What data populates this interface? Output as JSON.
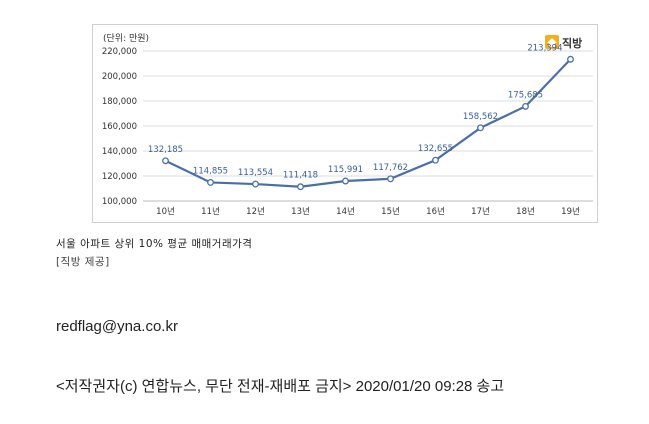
{
  "chart_data": {
    "type": "line",
    "unit_label": "(단위: 만원)",
    "title": "",
    "xlabel": "",
    "ylabel": "",
    "categories": [
      "10년",
      "11년",
      "12년",
      "13년",
      "14년",
      "15년",
      "16년",
      "17년",
      "18년",
      "19년"
    ],
    "series": [
      {
        "values": [
          132185,
          114855,
          113554,
          111418,
          115991,
          117762,
          132655,
          158562,
          175685,
          213394
        ],
        "labels": [
          "132,185",
          "114,855",
          "113,554",
          "111,418",
          "115,991",
          "117,762",
          "132,655",
          "158,562",
          "175,685",
          "213,394"
        ]
      }
    ],
    "ylim": [
      100000,
      220000
    ],
    "yticks": [
      100000,
      120000,
      140000,
      160000,
      180000,
      200000,
      220000
    ],
    "ytick_labels": [
      "100,000",
      "120,000",
      "140,000",
      "160,000",
      "180,000",
      "200,000",
      "220,000"
    ],
    "grid": true,
    "colors": {
      "line": "#4a6fa8",
      "marker_fill": "#ffffff",
      "grid": "#dddddd",
      "label": "#3a5f9a"
    }
  },
  "logo": {
    "text": "직방",
    "icon": "house-icon",
    "color": "#f2b01e"
  },
  "caption": "서울 아파트 상위 10% 평균 매매거래가격",
  "credit": "[직방 제공]",
  "email": "redflag@yna.co.kr",
  "copyright": "<저작권자(c) 연합뉴스, 무단 전재-재배포 금지> 2020/01/20 09:28 송고"
}
